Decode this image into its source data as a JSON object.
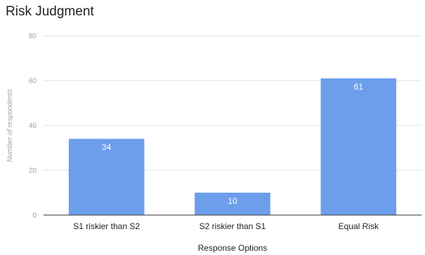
{
  "chart_data": {
    "type": "bar",
    "title": "Risk Judgment",
    "xlabel": "Response Options",
    "ylabel": "Number of respondents",
    "categories": [
      "S1 riskier than S2",
      "S2  riskier than S1",
      "Equal Risk"
    ],
    "values": [
      34,
      10,
      61
    ],
    "data_labels": [
      "34",
      "10",
      "61"
    ],
    "yticks": [
      0,
      20,
      40,
      60,
      80
    ],
    "ylim": [
      0,
      80
    ],
    "grid": true,
    "legend": "none",
    "bar_color": "#6d9eeb"
  }
}
